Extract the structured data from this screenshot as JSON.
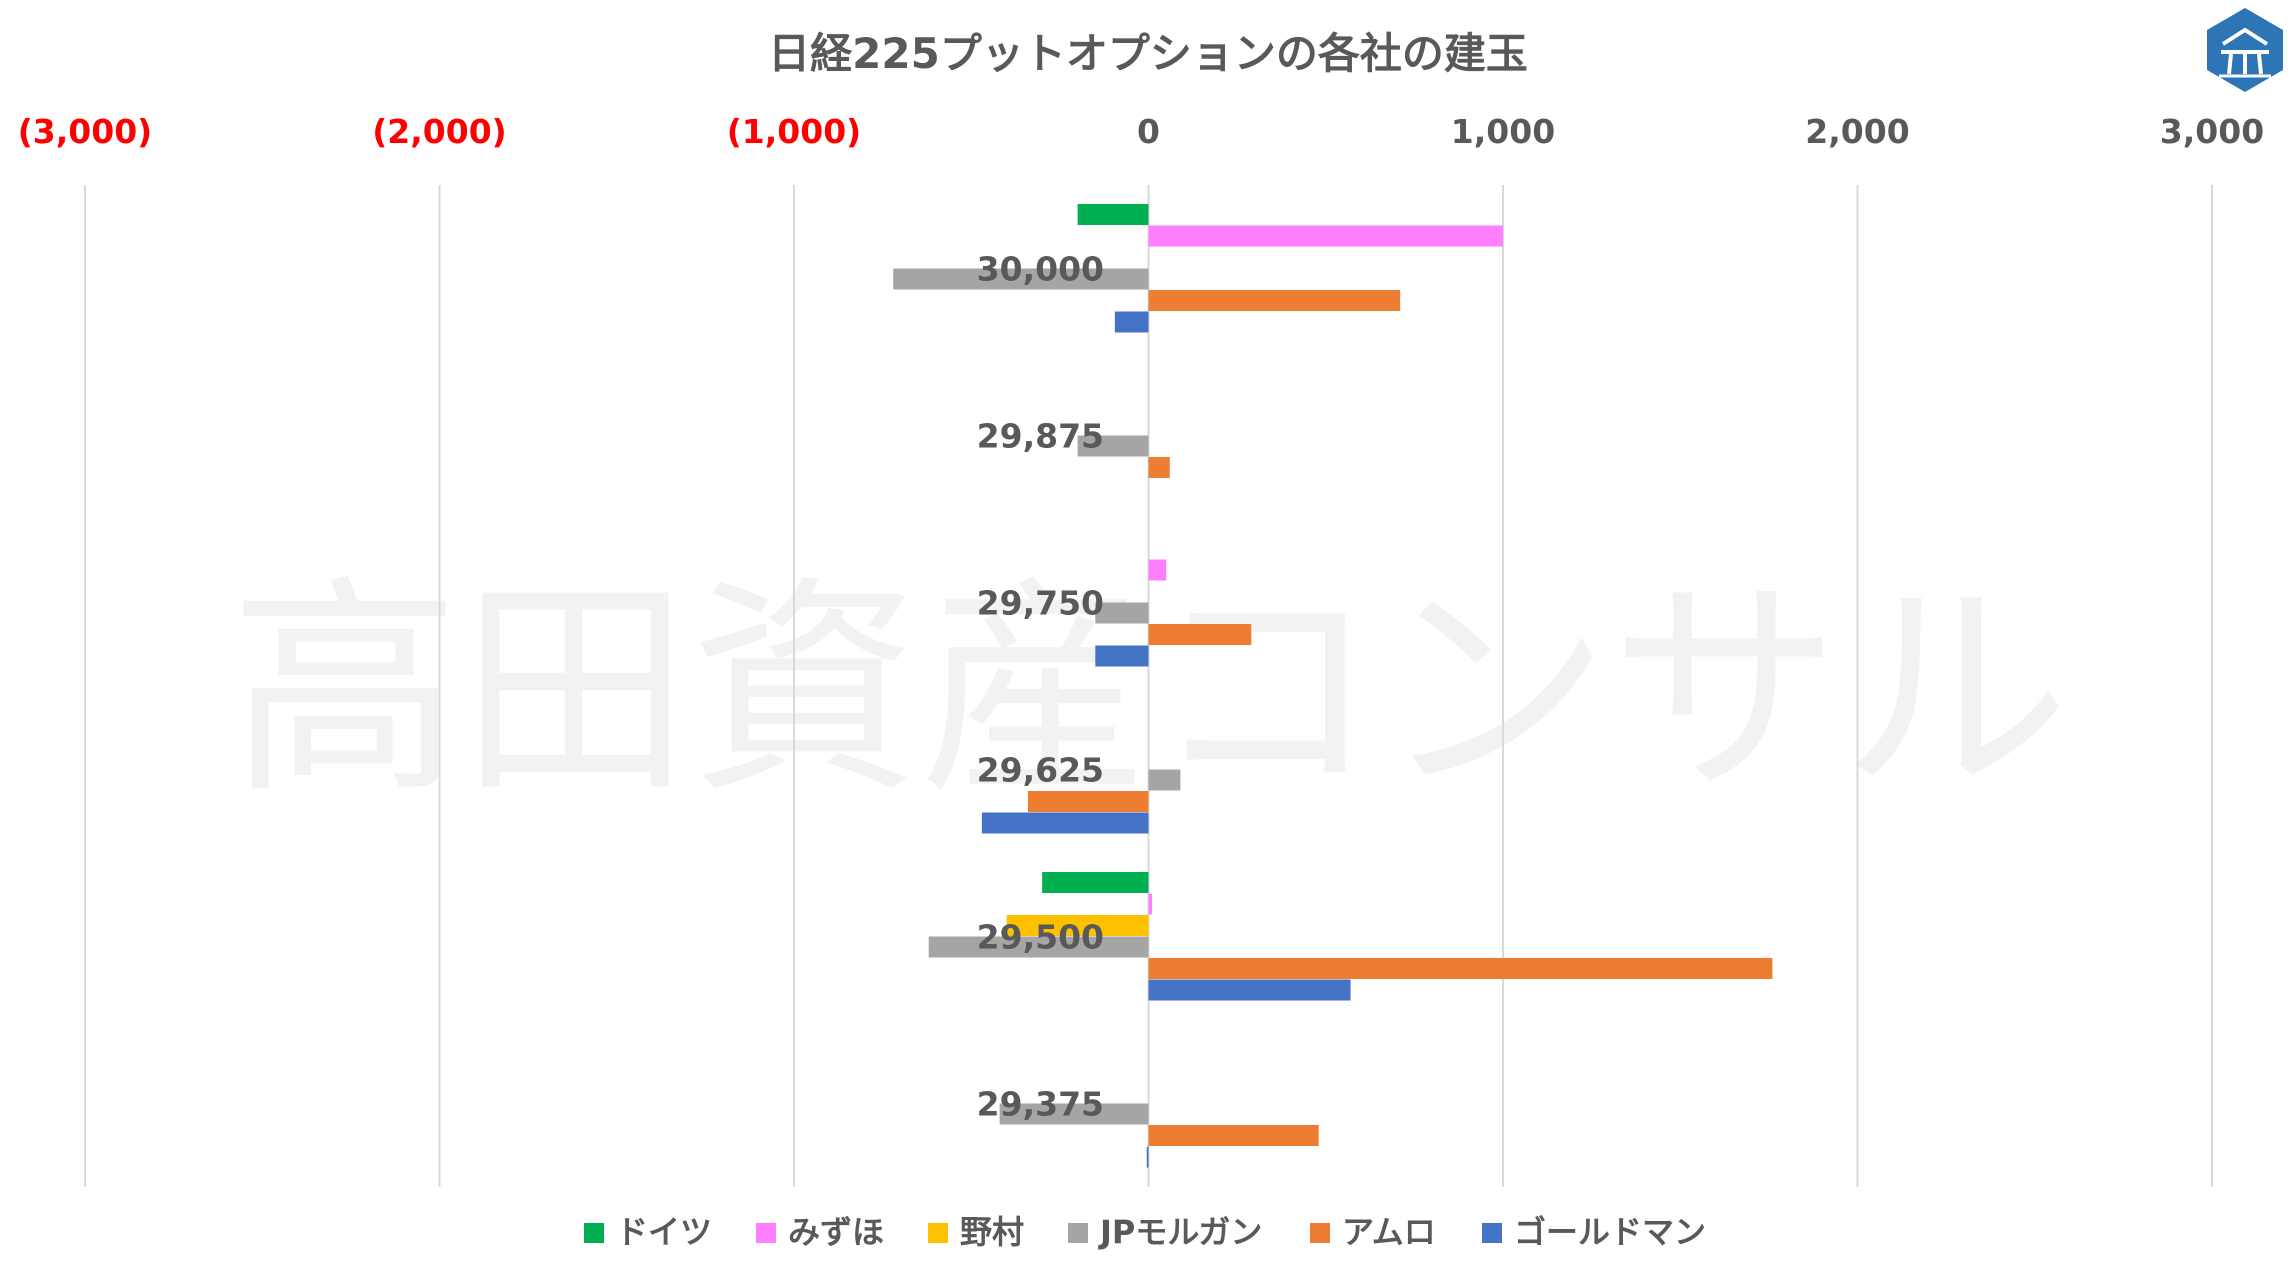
{
  "chart_data": {
    "type": "bar",
    "orientation": "horizontal",
    "title": "日経225プットオプションの各社の建玉",
    "watermark": "高田資産コンサル",
    "xlim": [
      -3000,
      3000
    ],
    "x_ticks": [
      -3000,
      -2000,
      -1000,
      0,
      1000,
      2000,
      3000
    ],
    "x_tick_labels": [
      "(3,000)",
      "(2,000)",
      "(1,000)",
      "0",
      "1,000",
      "2,000",
      "3,000"
    ],
    "negative_tick_color": "#ff0000",
    "positive_tick_color": "#595959",
    "grid": true,
    "legend_position": "bottom",
    "categories": [
      "30,000",
      "29,875",
      "29,750",
      "29,625",
      "29,500",
      "29,375"
    ],
    "series": [
      {
        "name": "ドイツ",
        "color": "#00b050",
        "values": [
          -200,
          0,
          0,
          0,
          -300,
          0
        ]
      },
      {
        "name": "みずほ",
        "color": "#ff80ff",
        "values": [
          1000,
          0,
          50,
          0,
          10,
          0
        ]
      },
      {
        "name": "野村",
        "color": "#ffc000",
        "values": [
          0,
          0,
          0,
          0,
          -400,
          0
        ]
      },
      {
        "name": "JPモルガン",
        "color": "#a5a5a5",
        "values": [
          -720,
          -200,
          -150,
          90,
          -620,
          -420
        ]
      },
      {
        "name": "アムロ",
        "color": "#ed7d31",
        "values": [
          710,
          60,
          290,
          -340,
          1760,
          480
        ]
      },
      {
        "name": "ゴールドマン",
        "color": "#4472c4",
        "values": [
          -95,
          0,
          -150,
          -470,
          570,
          -5
        ]
      }
    ]
  }
}
